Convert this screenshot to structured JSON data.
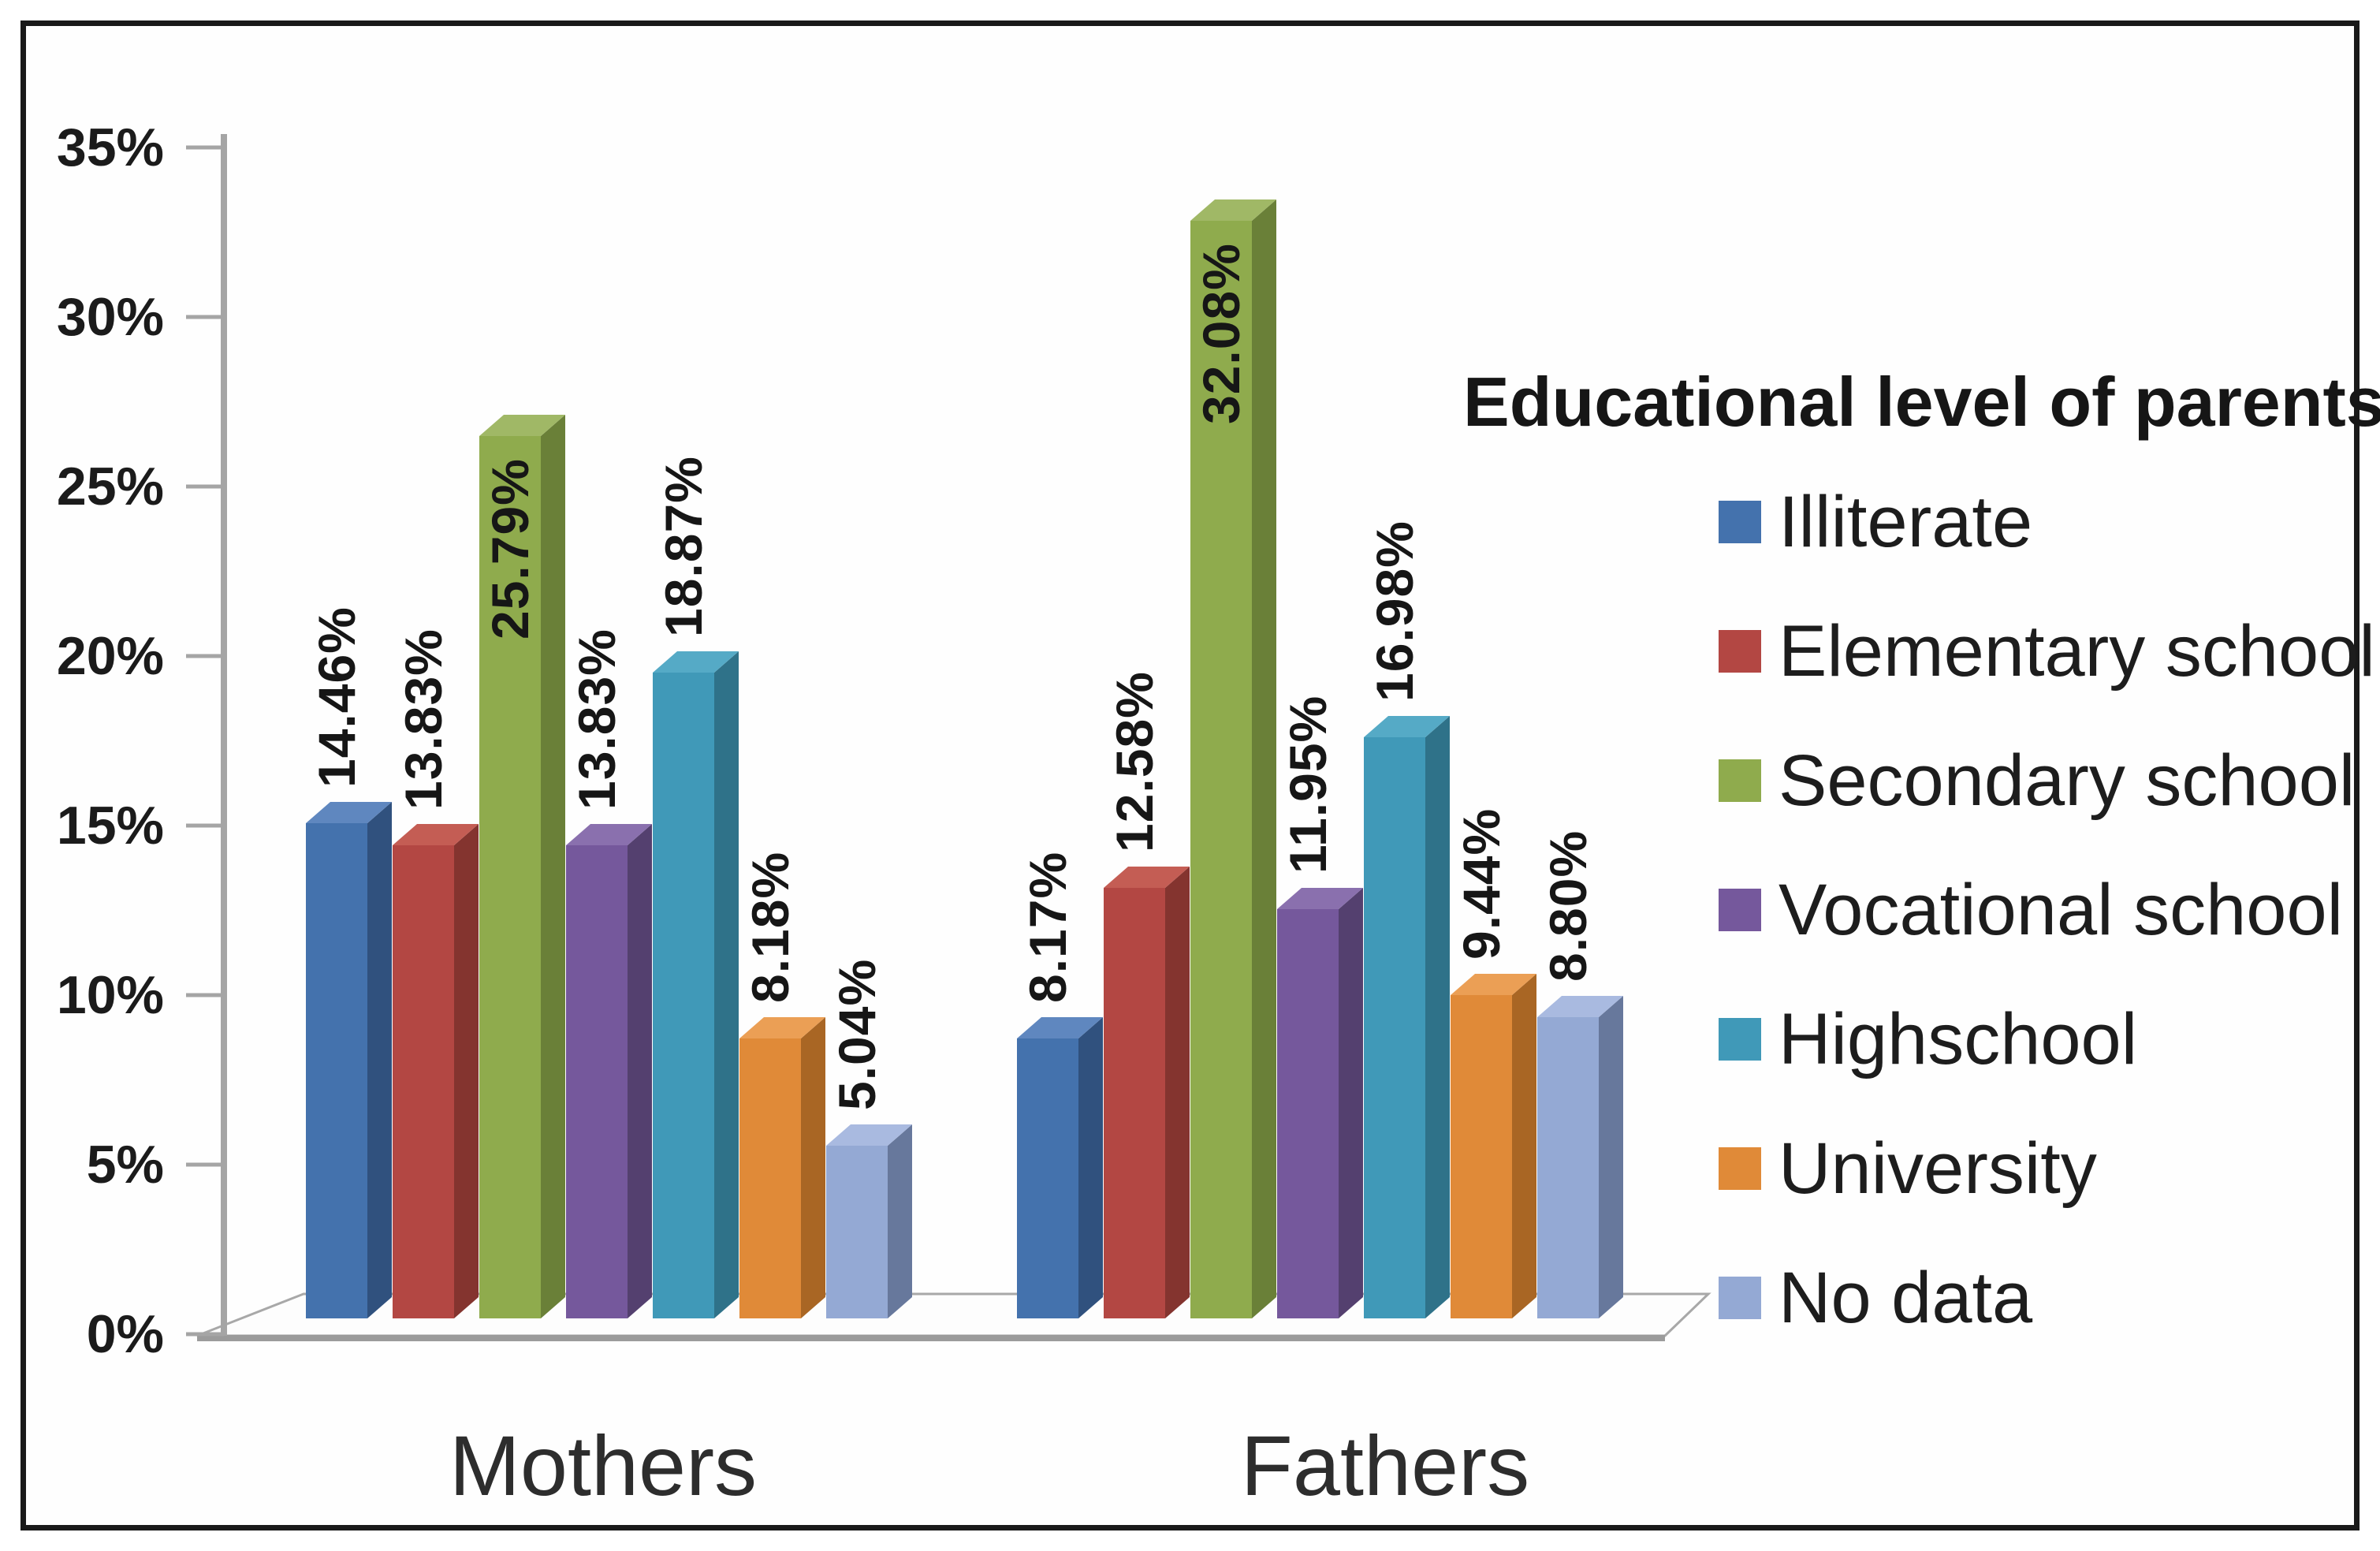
{
  "chart_data": {
    "type": "bar",
    "style": "3d-column",
    "title": "Educational level of parents",
    "legend_position": "right",
    "grid": false,
    "categories": [
      "Mothers",
      "Fathers"
    ],
    "series": [
      {
        "name": "Illiterate",
        "values": [
          14.46,
          8.17
        ],
        "labels": [
          "14.46%",
          "8.17%"
        ],
        "color": "#4472ad",
        "side_color": "#30517e",
        "top_color": "#5f87bf"
      },
      {
        "name": "Elementary school",
        "values": [
          13.83,
          12.58
        ],
        "labels": [
          "13.83%",
          "12.58%"
        ],
        "color": "#b34743",
        "side_color": "#84342f",
        "top_color": "#c45d54"
      },
      {
        "name": "Secondary school",
        "values": [
          25.79,
          32.08
        ],
        "labels": [
          "25.79%",
          "32.08%"
        ],
        "color": "#8fab4d",
        "side_color": "#6a8038",
        "top_color": "#a0b866"
      },
      {
        "name": "Vocational school",
        "values": [
          13.83,
          11.95
        ],
        "labels": [
          "13.83%",
          "11.95%"
        ],
        "color": "#75589c",
        "side_color": "#54406f",
        "top_color": "#8a70ae"
      },
      {
        "name": "Highschool",
        "values": [
          18.87,
          16.98
        ],
        "labels": [
          "18.87%",
          "16.98%"
        ],
        "color": "#4099b8",
        "side_color": "#2f7289",
        "top_color": "#55aac6"
      },
      {
        "name": "University",
        "values": [
          8.18,
          9.44
        ],
        "labels": [
          "8.18%",
          "9.44%"
        ],
        "color": "#e08a38",
        "side_color": "#a96624",
        "top_color": "#eb9f55"
      },
      {
        "name": "No data",
        "values": [
          5.04,
          8.8
        ],
        "labels": [
          "5.04%",
          "8.80%"
        ],
        "color": "#94a9d4",
        "side_color": "#67789c",
        "top_color": "#a9bae0"
      }
    ],
    "y_axis": {
      "unit": "%",
      "min": 0,
      "max": 35,
      "step": 5,
      "tick_labels": [
        "0%",
        "5%",
        "10%",
        "15%",
        "20%",
        "25%",
        "30%",
        "35%"
      ]
    }
  }
}
